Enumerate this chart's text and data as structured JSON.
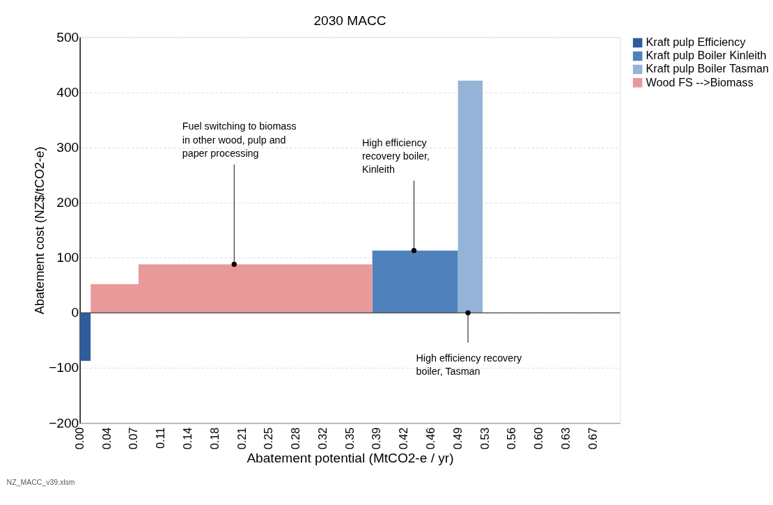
{
  "chart_data": {
    "type": "area",
    "title": "2030 MACC",
    "xlabel": "Abatement potential (MtCO2-e / yr)",
    "ylabel": "Abatement cost (NZ$/tCO2-e)",
    "xlim": [
      0,
      0.7
    ],
    "xticks": [
      {
        "value": 0,
        "label": "0.00"
      },
      {
        "value": 0.035,
        "label": "0.04"
      },
      {
        "value": 0.07,
        "label": "0.07"
      },
      {
        "value": 0.105,
        "label": "0.11"
      },
      {
        "value": 0.14,
        "label": "0.14"
      },
      {
        "value": 0.175,
        "label": "0.18"
      },
      {
        "value": 0.21,
        "label": "0.21"
      },
      {
        "value": 0.245,
        "label": "0.25"
      },
      {
        "value": 0.28,
        "label": "0.28"
      },
      {
        "value": 0.315,
        "label": "0.32"
      },
      {
        "value": 0.35,
        "label": "0.35"
      },
      {
        "value": 0.385,
        "label": "0.39"
      },
      {
        "value": 0.42,
        "label": "0.42"
      },
      {
        "value": 0.455,
        "label": "0.46"
      },
      {
        "value": 0.49,
        "label": "0.49"
      },
      {
        "value": 0.525,
        "label": "0.53"
      },
      {
        "value": 0.56,
        "label": "0.56"
      },
      {
        "value": 0.595,
        "label": "0.60"
      },
      {
        "value": 0.63,
        "label": "0.63"
      },
      {
        "value": 0.665,
        "label": "0.67"
      }
    ],
    "ylim": [
      -200,
      500
    ],
    "yticks": [
      -200,
      -100,
      0,
      100,
      200,
      300,
      400,
      500
    ],
    "grid": "y",
    "legend": "top right",
    "series": [
      {
        "name": "Kraft pulp Efficiency",
        "color": "#2e5d99",
        "x": [
          0,
          0.014
        ],
        "values": [
          -87,
          -87
        ]
      },
      {
        "name": "Kraft pulp Boiler Kinleith",
        "color": "#4f81bd",
        "x": [
          0.379,
          0.49
        ],
        "values": [
          113,
          113
        ]
      },
      {
        "name": "Kraft pulp Boiler Tasman",
        "color": "#95b3d7",
        "x": [
          0.49,
          0.522
        ],
        "values": [
          421,
          421
        ]
      },
      {
        "name": "Wood FS -->Biomass",
        "color": "#e89a9a",
        "x": [
          0.014,
          0.076,
          0.076,
          0.379
        ],
        "values": [
          52,
          52,
          88,
          88
        ]
      }
    ],
    "ref_lines": [
      {
        "axis": "y",
        "value": 0,
        "color": "#404040"
      }
    ],
    "annotations": [
      {
        "text": "Fuel switching to biomass\nin other wood, pulp and\npaper processing",
        "x": 0.2,
        "y": 88
      },
      {
        "text": "High efficiency\nrecovery boiler,\nKinleith",
        "x": 0.433,
        "y": 113
      },
      {
        "text": "High efficiency recovery\nboiler, Tasman",
        "x": 0.503,
        "y": 0
      },
      "NZ_MACC_v39.xlsm"
    ]
  }
}
